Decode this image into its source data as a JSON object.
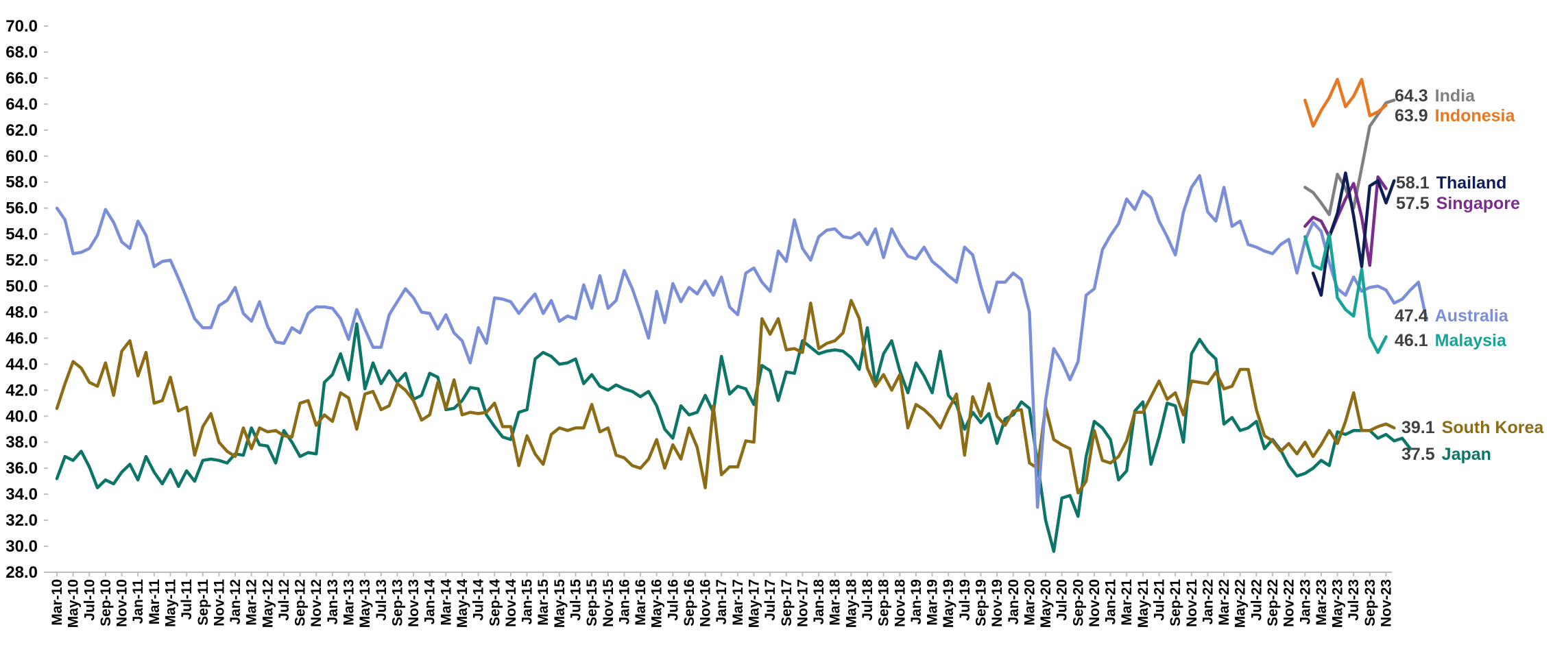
{
  "chart_data": {
    "type": "line",
    "title": "",
    "xlabel": "",
    "ylabel": "",
    "ylim": [
      28.0,
      70.0
    ],
    "ytick_step": 2.0,
    "grid": false,
    "legend": "end-labels-right",
    "x_start": "Mar-10",
    "x_end": "Dec-23",
    "xtick_labels": [
      "Mar-10",
      "May-10",
      "Jul-10",
      "Sep-10",
      "Nov-10",
      "Jan-11",
      "Mar-11",
      "May-11",
      "Jul-11",
      "Sep-11",
      "Nov-11",
      "Jan-12",
      "Mar-12",
      "May-12",
      "Jul-12",
      "Sep-12",
      "Nov-12",
      "Jan-13",
      "Mar-13",
      "May-13",
      "Jul-13",
      "Sep-13",
      "Nov-13",
      "Jan-14",
      "Mar-14",
      "May-14",
      "Jul-14",
      "Sep-14",
      "Nov-14",
      "Jan-15",
      "Mar-15",
      "May-15",
      "Jul-15",
      "Sep-15",
      "Nov-15",
      "Jan-16",
      "Mar-16",
      "May-16",
      "Jul-16",
      "Sep-16",
      "Nov-16",
      "Jan-17",
      "Mar-17",
      "May-17",
      "Jul-17",
      "Sep-17",
      "Nov-17",
      "Jan-18",
      "Mar-18",
      "May-18",
      "Jul-18",
      "Sep-18",
      "Nov-18",
      "Jan-19",
      "Mar-19",
      "May-19",
      "Jul-19",
      "Sep-19",
      "Nov-19",
      "Jan-20",
      "Mar-20",
      "May-20",
      "Jul-20",
      "Sep-20",
      "Nov-20",
      "Jan-21",
      "Mar-21",
      "May-21",
      "Jul-21",
      "Sep-21",
      "Nov-21",
      "Jan-22",
      "Mar-22",
      "May-22",
      "Jul-22",
      "Sep-22",
      "Nov-22",
      "Jan-23",
      "Mar-23",
      "May-23",
      "Jul-23",
      "Sep-23",
      "Nov-23"
    ],
    "series": [
      {
        "name": "Australia",
        "color": "#7B8FD8",
        "end_label": "47.4",
        "start": "Mar-10",
        "values": [
          56.0,
          55.1,
          52.5,
          52.6,
          52.9,
          53.9,
          55.9,
          54.9,
          53.4,
          52.9,
          55.0,
          53.9,
          51.5,
          51.9,
          52.0,
          50.6,
          49.1,
          47.5,
          46.8,
          46.8,
          48.5,
          48.9,
          49.9,
          47.9,
          47.3,
          48.8,
          46.9,
          45.7,
          45.6,
          46.8,
          46.4,
          47.9,
          48.4,
          48.4,
          48.3,
          47.5,
          45.9,
          48.2,
          46.7,
          45.3,
          45.3,
          47.8,
          48.8,
          49.8,
          49.1,
          48.0,
          47.9,
          46.7,
          47.8,
          46.4,
          45.8,
          44.1,
          46.8,
          45.6,
          49.1,
          49.0,
          48.8,
          47.9,
          48.7,
          49.4,
          47.9,
          48.9,
          47.3,
          47.7,
          47.5,
          50.1,
          48.3,
          50.8,
          48.3,
          48.9,
          51.2,
          49.8,
          48.0,
          46.0,
          49.6,
          47.2,
          50.2,
          48.8,
          49.9,
          49.4,
          50.4,
          49.3,
          50.7,
          48.4,
          47.8,
          51.0,
          51.4,
          50.3,
          49.6,
          52.7,
          51.9,
          55.1,
          52.9,
          52.0,
          53.8,
          54.3,
          54.4,
          53.8,
          53.7,
          54.1,
          53.2,
          54.4,
          52.2,
          54.4,
          53.2,
          52.3,
          52.1,
          53.0,
          51.9,
          51.4,
          50.8,
          50.3,
          53.0,
          52.4,
          50.0,
          48.0,
          50.3,
          50.3,
          51.0,
          50.5,
          48.0,
          33.0,
          41.2,
          45.2,
          44.2,
          42.8,
          44.2,
          49.3,
          49.8,
          52.8,
          53.9,
          54.8,
          56.7,
          55.9,
          57.3,
          56.8,
          55.0,
          53.8,
          52.4,
          55.7,
          57.6,
          58.5,
          55.7,
          55.0,
          57.6,
          54.6,
          55.0,
          53.2,
          53.0,
          52.7,
          52.5,
          53.2,
          53.6,
          51.0,
          53.5,
          54.9,
          54.2,
          51.8,
          49.8,
          49.3,
          50.7,
          49.6,
          49.9,
          50.0,
          49.7,
          48.7,
          49.0,
          49.7,
          50.3,
          47.4
        ]
      },
      {
        "name": "South Korea",
        "color": "#8C6C14",
        "end_label": "39.1",
        "start": "Mar-10",
        "values": [
          40.6,
          42.5,
          44.2,
          43.7,
          42.6,
          42.3,
          44.1,
          41.6,
          45.0,
          45.8,
          43.1,
          44.9,
          41.0,
          41.2,
          43.0,
          40.4,
          40.7,
          37.0,
          39.2,
          40.2,
          38.0,
          37.3,
          36.9,
          39.1,
          37.5,
          39.1,
          38.8,
          38.9,
          38.5,
          38.4,
          41.0,
          41.2,
          39.3,
          40.1,
          39.6,
          41.8,
          41.4,
          39.0,
          41.7,
          41.9,
          40.5,
          40.8,
          42.5,
          42.0,
          41.2,
          39.7,
          40.1,
          42.6,
          40.6,
          42.8,
          40.1,
          40.3,
          40.2,
          40.3,
          41.0,
          39.2,
          39.2,
          36.2,
          38.5,
          37.1,
          36.3,
          38.6,
          39.1,
          38.9,
          39.1,
          39.1,
          40.9,
          38.8,
          39.1,
          37.0,
          36.8,
          36.2,
          36.0,
          36.7,
          38.2,
          36.0,
          37.8,
          36.7,
          39.1,
          37.6,
          34.5,
          40.8,
          35.5,
          36.1,
          36.1,
          38.1,
          38.0,
          47.5,
          46.3,
          47.5,
          45.1,
          45.2,
          44.9,
          48.7,
          45.2,
          45.6,
          45.8,
          46.4,
          48.9,
          47.5,
          43.7,
          42.3,
          43.2,
          42.0,
          43.2,
          39.1,
          40.9,
          40.5,
          39.9,
          39.1,
          40.5,
          41.7,
          37.0,
          41.5,
          40.0,
          42.5,
          40.0,
          39.3,
          40.4,
          40.5,
          36.4,
          36.0,
          40.7,
          38.2,
          37.8,
          37.5,
          34.1,
          35.0,
          38.9,
          36.6,
          36.4,
          36.9,
          38.1,
          40.3,
          40.3,
          41.5,
          42.7,
          41.3,
          41.8,
          40.1,
          42.7,
          42.6,
          42.5,
          43.4,
          42.1,
          42.3,
          43.6,
          43.6,
          40.5,
          38.5,
          38.1,
          37.3,
          37.9,
          37.1,
          38.0,
          36.9,
          37.8,
          38.9,
          37.9,
          39.6,
          41.8,
          38.9,
          38.9,
          39.2,
          39.4,
          39.1
        ]
      },
      {
        "name": "Japan",
        "color": "#0C7568",
        "end_label": "37.5",
        "start": "Mar-10",
        "values": [
          35.2,
          36.9,
          36.6,
          37.3,
          36.1,
          34.5,
          35.1,
          34.8,
          35.7,
          36.3,
          35.1,
          36.9,
          35.7,
          34.8,
          35.9,
          34.6,
          35.8,
          35.0,
          36.6,
          36.7,
          36.6,
          36.4,
          37.1,
          37.0,
          39.1,
          37.8,
          37.7,
          36.4,
          38.9,
          38.0,
          36.9,
          37.2,
          37.1,
          42.6,
          43.2,
          44.8,
          42.8,
          47.1,
          42.1,
          44.1,
          42.5,
          43.5,
          42.6,
          43.3,
          41.3,
          41.6,
          43.3,
          43.0,
          40.5,
          40.6,
          41.2,
          42.2,
          42.1,
          40.1,
          39.2,
          38.4,
          38.2,
          40.3,
          40.5,
          44.4,
          44.9,
          44.6,
          44.0,
          44.1,
          44.4,
          42.5,
          43.2,
          42.3,
          42.0,
          42.4,
          42.1,
          41.9,
          41.5,
          41.9,
          40.8,
          39.0,
          38.3,
          40.8,
          40.1,
          40.3,
          41.6,
          40.3,
          44.6,
          41.7,
          42.3,
          42.1,
          40.9,
          43.9,
          43.5,
          41.2,
          43.4,
          43.3,
          45.8,
          45.3,
          44.8,
          45.0,
          45.1,
          45.0,
          44.5,
          43.6,
          46.8,
          42.5,
          44.8,
          45.8,
          43.5,
          41.8,
          44.1,
          43.1,
          41.8,
          45.0,
          41.6,
          40.9,
          39.0,
          40.3,
          39.5,
          40.2,
          37.9,
          39.8,
          40.1,
          41.1,
          40.6,
          36.4,
          32.0,
          29.6,
          33.7,
          33.9,
          32.3,
          36.9,
          39.6,
          39.1,
          38.2,
          35.1,
          35.8,
          40.4,
          41.1,
          36.3,
          38.4,
          41.0,
          40.8,
          38.0,
          44.8,
          45.9,
          45.0,
          44.4,
          39.4,
          39.9,
          38.9,
          39.1,
          39.6,
          37.5,
          38.2,
          37.4,
          36.2,
          35.4,
          35.6,
          36.0,
          36.6,
          36.2,
          38.8,
          38.6,
          38.9,
          38.9,
          38.9,
          38.3,
          38.6,
          38.1,
          38.3,
          37.5
        ]
      },
      {
        "name": "India",
        "color": "#808080",
        "end_label": "64.3",
        "start": "Jan-23",
        "values": [
          57.6,
          57.2,
          56.4,
          55.5,
          58.6,
          57.5,
          56.0,
          59.1,
          62.3,
          63.2,
          64.1,
          64.3
        ]
      },
      {
        "name": "Indonesia",
        "color": "#E87722",
        "end_label": "63.9",
        "start": "Jan-23",
        "values": [
          64.3,
          62.3,
          63.5,
          64.5,
          65.9,
          63.8,
          64.6,
          65.9,
          63.1,
          63.4,
          63.9
        ]
      },
      {
        "name": "Thailand",
        "color": "#0F1F55",
        "end_label": "58.1",
        "start": "Feb-23",
        "values": [
          51.0,
          49.3,
          53.8,
          55.6,
          58.7,
          55.4,
          51.5,
          57.7,
          58.1,
          56.4,
          58.1
        ]
      },
      {
        "name": "Singapore",
        "color": "#7B2D8E",
        "end_label": "57.5",
        "start": "Jan-23",
        "values": [
          54.6,
          55.3,
          55.0,
          53.8,
          55.3,
          56.7,
          57.9,
          55.3,
          51.6,
          58.4,
          57.5
        ]
      },
      {
        "name": "Malaysia",
        "color": "#17A398",
        "end_label": "46.1",
        "start": "Jan-23",
        "values": [
          53.8,
          51.6,
          51.3,
          54.0,
          49.1,
          48.2,
          47.7,
          51.3,
          46.1,
          44.9,
          46.1
        ]
      }
    ]
  }
}
